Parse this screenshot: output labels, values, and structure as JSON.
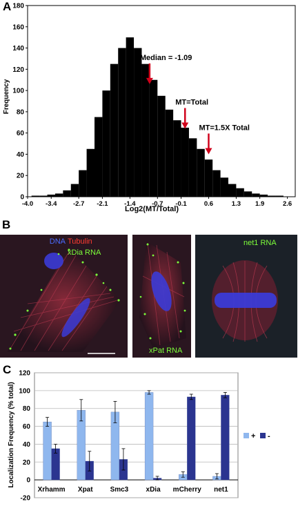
{
  "panels": {
    "a": {
      "letter": "A"
    },
    "b": {
      "letter": "B"
    },
    "c": {
      "letter": "C"
    }
  },
  "histogram": {
    "chart_data": {
      "type": "bar",
      "title": "",
      "xlabel": "Log2(MT/Total)",
      "ylabel": "Frequency",
      "xlim": [
        -4.0,
        2.8
      ],
      "ylim": [
        0,
        180
      ],
      "yticks": [
        0,
        20,
        40,
        60,
        80,
        100,
        120,
        140,
        160,
        180
      ],
      "xticks": [
        "-4.0",
        "-3.4",
        "-2.7",
        "-2.1",
        "-1.4",
        "-0.7",
        "-0.1",
        "0.6",
        "1.3",
        "1.9",
        "2.6"
      ],
      "xtick_values": [
        -4.0,
        -3.4,
        -2.7,
        -2.1,
        -1.4,
        -0.7,
        -0.1,
        0.6,
        1.3,
        1.9,
        2.6
      ],
      "bin_centers": [
        -3.8,
        -3.6,
        -3.4,
        -3.2,
        -3.0,
        -2.8,
        -2.6,
        -2.4,
        -2.2,
        -2.0,
        -1.8,
        -1.6,
        -1.4,
        -1.2,
        -1.0,
        -0.8,
        -0.6,
        -0.4,
        -0.2,
        0.0,
        0.2,
        0.4,
        0.6,
        0.8,
        1.0,
        1.2,
        1.4,
        1.6,
        1.8,
        2.0,
        2.2,
        2.4,
        2.6
      ],
      "values": [
        1,
        1,
        2,
        3,
        6,
        12,
        25,
        45,
        75,
        100,
        125,
        140,
        150,
        140,
        125,
        110,
        95,
        82,
        72,
        65,
        55,
        45,
        35,
        25,
        18,
        12,
        8,
        5,
        3,
        2,
        1,
        1,
        0
      ],
      "annotations": [
        {
          "text": "Median = -1.09",
          "x": -0.9,
          "arrow_tip_y": 106
        },
        {
          "text": "MT=Total",
          "x": 0.0,
          "arrow_tip_y": 64
        },
        {
          "text": "MT=1.5X Total",
          "x": 0.6,
          "arrow_tip_y": 40
        }
      ],
      "bar_color": "#000000",
      "arrow_color": "#d0021b",
      "grid": false
    }
  },
  "micrographs": {
    "left": {
      "labels": [
        {
          "text": "DNA",
          "color": "#4a6bff"
        },
        {
          "text": "Tubulin",
          "color": "#ff3b30"
        },
        {
          "text": "xDia RNA",
          "color": "#7dff3a"
        }
      ]
    },
    "middle": {
      "labels": [
        {
          "text": "xPat RNA",
          "color": "#7dff3a"
        }
      ]
    },
    "right": {
      "labels": [
        {
          "text": "net1 RNA",
          "color": "#7dff3a"
        }
      ]
    }
  },
  "bars": {
    "chart_data": {
      "type": "bar",
      "title": "",
      "xlabel": "",
      "ylabel": "Localization Frequency (% total)",
      "ylim": [
        -20,
        120
      ],
      "yticks": [
        -20,
        0,
        20,
        40,
        60,
        80,
        100,
        120
      ],
      "grid": true,
      "legend_position": "right",
      "categories": [
        "Xrhamm",
        "Xpat",
        "Smc3",
        "xDia",
        "mCherry",
        "net1"
      ],
      "series": [
        {
          "name": "+",
          "color": "#8fb7ee",
          "values": [
            65,
            78,
            76,
            98,
            6,
            4
          ],
          "errors": [
            5,
            12,
            12,
            2,
            3,
            3
          ]
        },
        {
          "name": "-",
          "color": "#2b3590",
          "values": [
            35,
            21,
            23,
            2,
            93,
            95
          ],
          "errors": [
            5,
            11,
            12,
            2,
            3,
            3
          ]
        }
      ]
    }
  }
}
